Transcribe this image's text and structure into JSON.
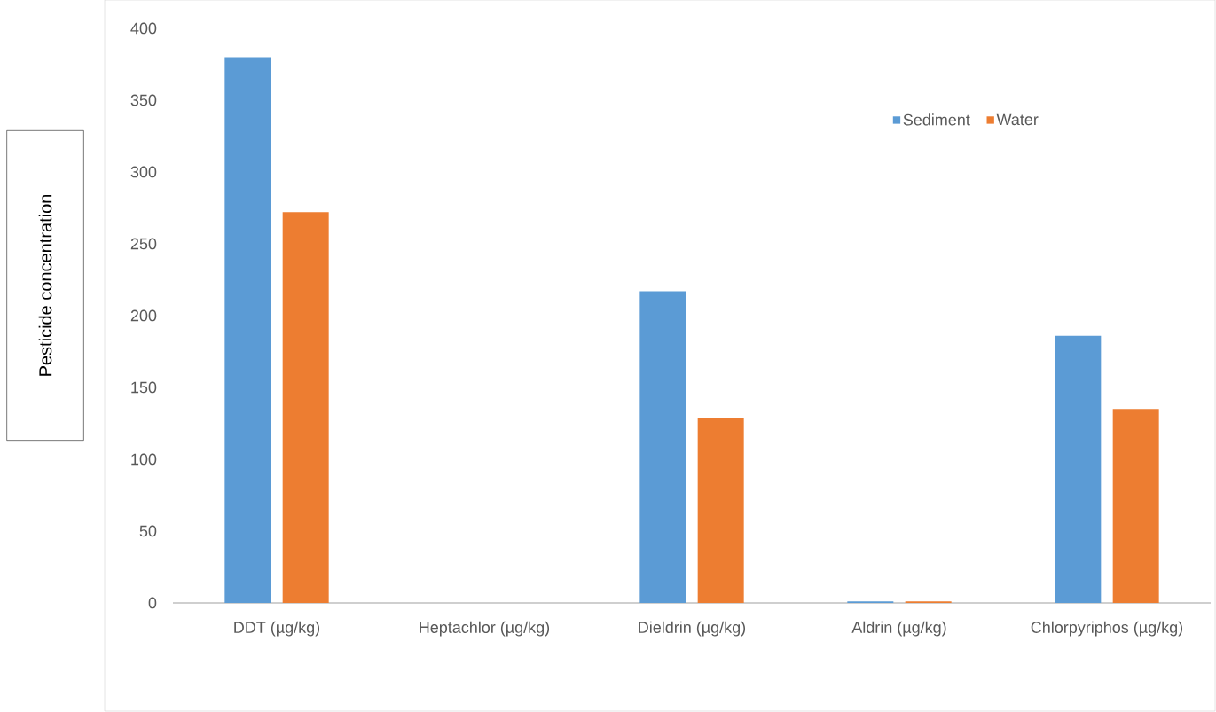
{
  "chart_data": {
    "type": "bar",
    "ylabel": "Pesticide concentration",
    "categories": [
      "DDT (µg/kg)",
      "Heptachlor (µg/kg)",
      "Dieldrin (µg/kg)",
      "Aldrin (µg/kg)",
      "Chlorpyriphos (µg/kg)"
    ],
    "series": [
      {
        "name": "Sediment",
        "color": "#5b9bd5",
        "values": [
          380,
          0,
          217,
          1,
          186
        ]
      },
      {
        "name": "Water",
        "color": "#ed7d31",
        "values": [
          272,
          0,
          129,
          1,
          135
        ]
      }
    ],
    "ylim": [
      0,
      400
    ],
    "yticks": [
      0,
      50,
      100,
      150,
      200,
      250,
      300,
      350,
      400
    ],
    "legend": "top right"
  }
}
